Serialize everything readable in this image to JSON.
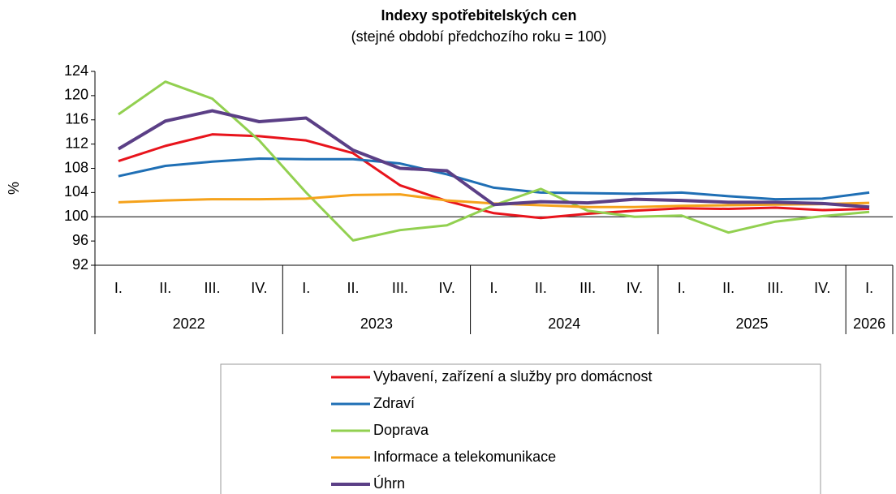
{
  "chart_data": {
    "type": "line",
    "title": "Indexy spotřebitelských cen",
    "subtitle": "(stejné období předchozího roku = 100)",
    "y_label": "%",
    "groups": [
      {
        "label": "2022",
        "categories": [
          "I.",
          "II.",
          "III.",
          "IV."
        ]
      },
      {
        "label": "2023",
        "categories": [
          "I.",
          "II.",
          "III.",
          "IV."
        ]
      },
      {
        "label": "2024",
        "categories": [
          "I.",
          "II.",
          "III.",
          "IV."
        ]
      },
      {
        "label": "2025",
        "categories": [
          "I.",
          "II.",
          "III.",
          "IV."
        ]
      },
      {
        "label": "2026",
        "categories": [
          "I."
        ]
      }
    ],
    "ylim": [
      92,
      124
    ],
    "yticks": [
      92,
      96,
      100,
      104,
      108,
      112,
      116,
      120,
      124
    ],
    "reference_line": 100,
    "series": [
      {
        "name": "Vybavení, zařízení a služby pro domácnost",
        "color": "#e8141c",
        "values": [
          109.2,
          111.7,
          113.6,
          113.3,
          112.6,
          110.5,
          105.2,
          102.6,
          100.6,
          99.8,
          100.5,
          101.0,
          101.4,
          101.3,
          101.5,
          101.1,
          101.3
        ]
      },
      {
        "name": "Zdraví",
        "color": "#1f6fb5",
        "values": [
          106.7,
          108.4,
          109.1,
          109.6,
          109.5,
          109.5,
          108.8,
          107.0,
          104.8,
          104.0,
          103.9,
          103.8,
          104.0,
          103.4,
          102.9,
          103.0,
          104.0
        ]
      },
      {
        "name": "Doprava",
        "color": "#92d050",
        "values": [
          116.9,
          122.3,
          119.5,
          112.6,
          104.0,
          96.1,
          97.8,
          98.6,
          101.9,
          104.6,
          101.0,
          100.0,
          100.2,
          97.4,
          99.2,
          100.1,
          100.8
        ]
      },
      {
        "name": "Informace a telekomunikace",
        "color": "#f5a21b",
        "values": [
          102.4,
          102.7,
          102.9,
          102.9,
          103.0,
          103.6,
          103.7,
          102.7,
          102.2,
          101.9,
          101.6,
          101.6,
          101.8,
          101.9,
          102.0,
          102.1,
          102.3
        ]
      },
      {
        "name": "Úhrn",
        "color": "#5b3f86",
        "width": 4,
        "values": [
          111.2,
          115.8,
          117.5,
          115.7,
          116.3,
          111.0,
          108.0,
          107.6,
          102.0,
          102.5,
          102.3,
          102.9,
          102.7,
          102.4,
          102.4,
          102.2,
          101.6
        ]
      }
    ]
  }
}
